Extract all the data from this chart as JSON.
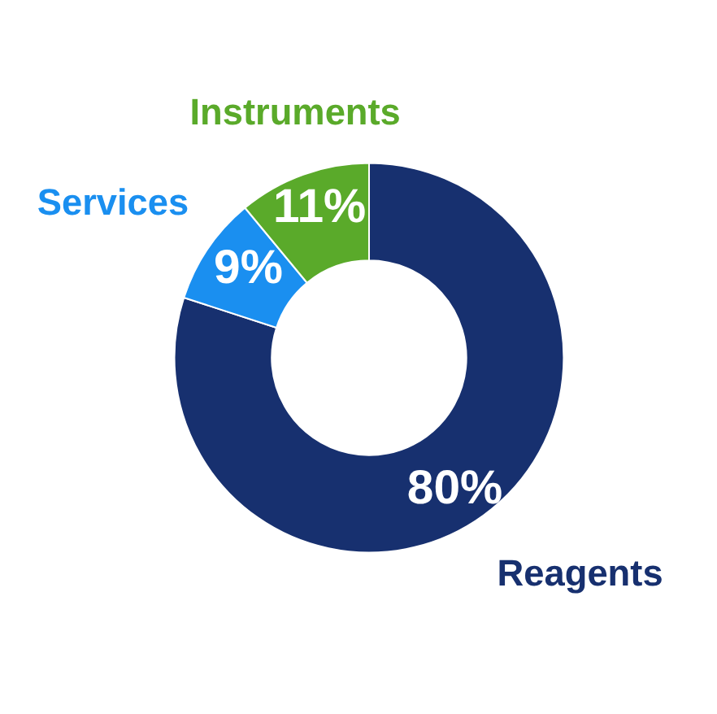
{
  "chart_data": {
    "type": "donut",
    "categories": [
      "Reagents",
      "Services",
      "Instruments"
    ],
    "values": [
      80,
      9,
      11
    ],
    "colors": [
      "#17306f",
      "#1a8ff0",
      "#5aaa2a"
    ],
    "value_labels": [
      "80%",
      "9%",
      "11%"
    ],
    "legend": false
  }
}
